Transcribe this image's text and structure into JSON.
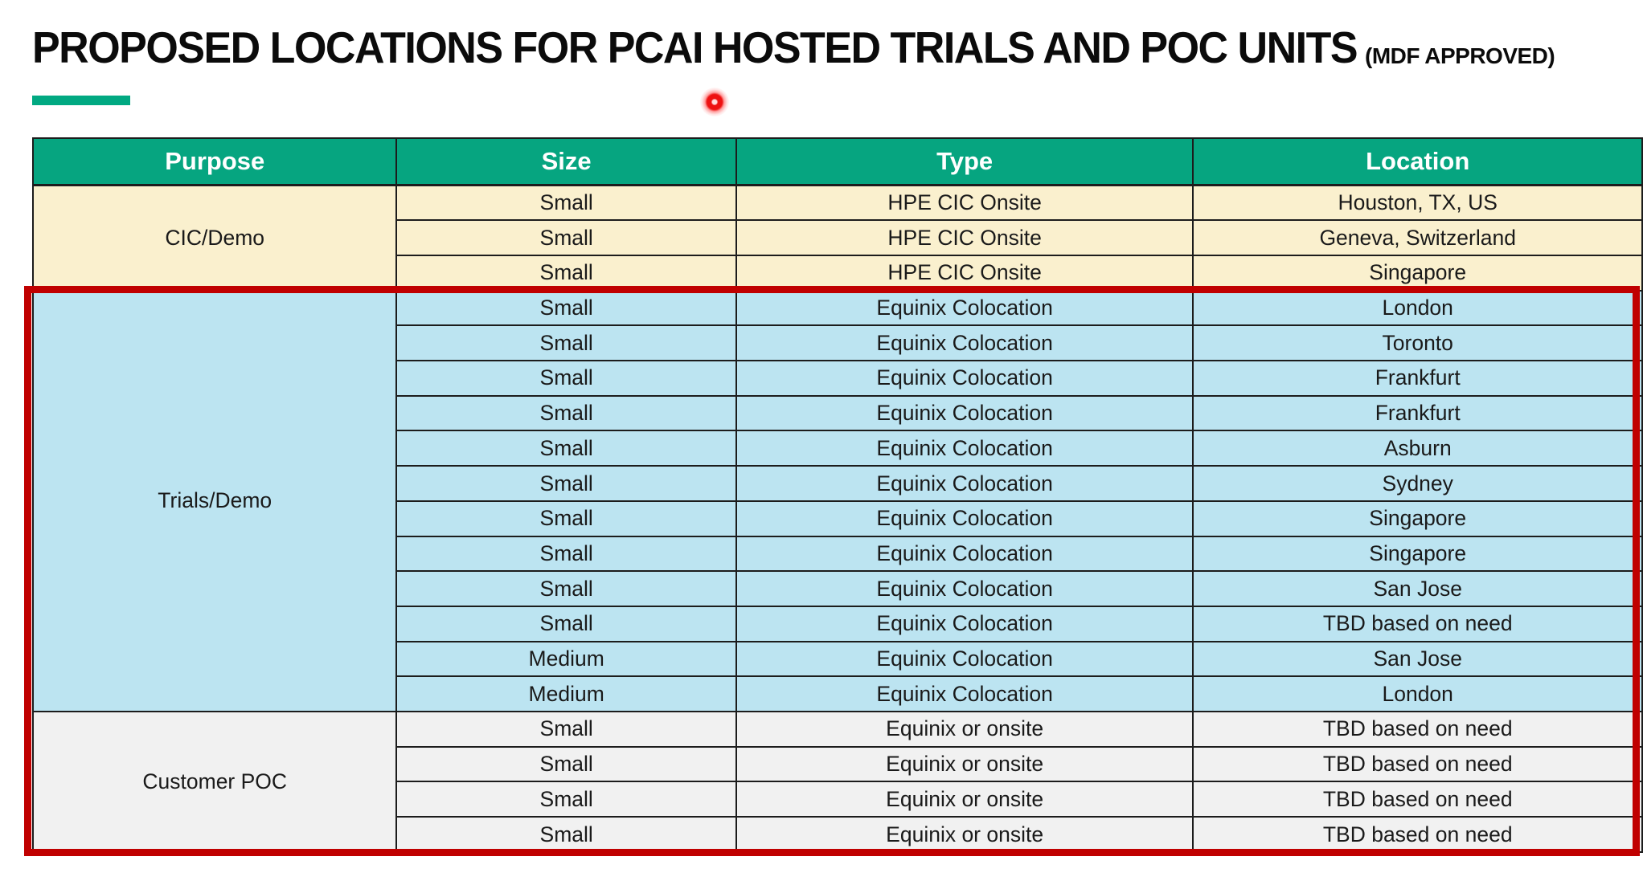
{
  "title": {
    "main": "PROPOSED LOCATIONS FOR PCAI HOSTED TRIALS AND POC UNITS",
    "suffix": "(MDF APPROVED)"
  },
  "colors": {
    "header_green": "#06a580",
    "accent_bar_green": "#01a982",
    "highlight_border_red": "#c00000",
    "laser_pointer_red": "#ee1111",
    "section_cic_yellow": "#faf0ce",
    "section_trials_blue": "#bce4f1",
    "section_poc_gray": "#f1f1f1",
    "grid_line": "#1c1c1c"
  },
  "table": {
    "headers": [
      "Purpose",
      "Size",
      "Type",
      "Location"
    ],
    "sections": [
      {
        "purpose": "CIC/Demo",
        "bg": "#faf0ce",
        "highlighted": false,
        "rows": [
          [
            "Small",
            "HPE CIC Onsite",
            "Houston, TX, US"
          ],
          [
            "Small",
            "HPE CIC Onsite",
            "Geneva, Switzerland"
          ],
          [
            "Small",
            "HPE CIC Onsite",
            "Singapore"
          ]
        ]
      },
      {
        "purpose": "Trials/Demo",
        "bg": "#bce4f1",
        "highlighted": true,
        "rows": [
          [
            "Small",
            "Equinix Colocation",
            "London"
          ],
          [
            "Small",
            "Equinix Colocation",
            "Toronto"
          ],
          [
            "Small",
            "Equinix Colocation",
            "Frankfurt"
          ],
          [
            "Small",
            "Equinix Colocation",
            "Frankfurt"
          ],
          [
            "Small",
            "Equinix Colocation",
            "Asburn"
          ],
          [
            "Small",
            "Equinix Colocation",
            "Sydney"
          ],
          [
            "Small",
            "Equinix Colocation",
            "Singapore"
          ],
          [
            "Small",
            "Equinix Colocation",
            "Singapore"
          ],
          [
            "Small",
            "Equinix Colocation",
            "San Jose"
          ],
          [
            "Small",
            "Equinix Colocation",
            "TBD based on need"
          ],
          [
            "Medium",
            "Equinix Colocation",
            "San Jose"
          ],
          [
            "Medium",
            "Equinix Colocation",
            "London"
          ]
        ]
      },
      {
        "purpose": "Customer POC",
        "bg": "#f1f1f1",
        "highlighted": true,
        "rows": [
          [
            "Small",
            "Equinix or onsite",
            "TBD based on need"
          ],
          [
            "Small",
            "Equinix or onsite",
            "TBD based on need"
          ],
          [
            "Small",
            "Equinix or onsite",
            "TBD based on need"
          ],
          [
            "Small",
            "Equinix or onsite",
            "TBD based on need"
          ]
        ]
      }
    ]
  }
}
